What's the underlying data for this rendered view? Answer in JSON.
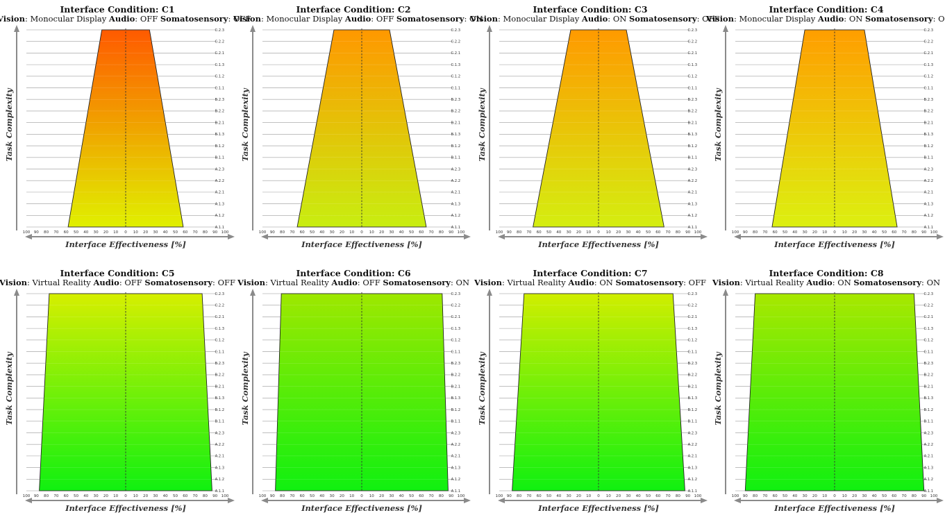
{
  "labels": {
    "title_prefix": "Interface Condition: ",
    "vision": "Vision",
    "audio": "Audio",
    "somatosensory": "Somatosensory",
    "x_axis": "Interface Effectiveness [%]",
    "y_axis": "Task Complexity"
  },
  "chart_data": [
    {
      "type": "area",
      "title": "Interface Condition: C1",
      "condition": "C1",
      "vision": "Monocular Display",
      "audio": "OFF",
      "somatosensory": "OFF",
      "xlabel": "Interface Effectiveness [%]",
      "ylabel": "Task Complexity",
      "x_ticks": [
        "100",
        "90",
        "80",
        "70",
        "60",
        "50",
        "40",
        "30",
        "20",
        "10",
        "0",
        "10",
        "20",
        "30",
        "40",
        "50",
        "60",
        "70",
        "80",
        "90",
        "100"
      ],
      "y_categories": [
        "A.1.1",
        "A.1.2",
        "A.1.3",
        "A.2.1",
        "A.2.2",
        "A.2.3",
        "B.1.1",
        "B.1.2",
        "B.1.3",
        "B.2.1",
        "B.2.2",
        "B.2.3",
        "C.1.1",
        "C.1.2",
        "C.1.3",
        "C.2.1",
        "C.2.2",
        "C.2.3"
      ],
      "effectiveness_bottom": 58,
      "effectiveness_top": 24,
      "top_color": "#ff5a00",
      "bottom_color": "#e0f000"
    },
    {
      "type": "area",
      "title": "Interface Condition: C2",
      "condition": "C2",
      "vision": "Monocular Display",
      "audio": "OFF",
      "somatosensory": "ON",
      "xlabel": "Interface Effectiveness [%]",
      "ylabel": "Task Complexity",
      "x_ticks": [
        "100",
        "90",
        "80",
        "70",
        "60",
        "50",
        "40",
        "30",
        "20",
        "10",
        "0",
        "10",
        "20",
        "30",
        "40",
        "50",
        "60",
        "70",
        "80",
        "90",
        "100"
      ],
      "y_categories": [
        "A.1.1",
        "A.1.2",
        "A.1.3",
        "A.2.1",
        "A.2.2",
        "A.2.3",
        "B.1.1",
        "B.1.2",
        "B.1.3",
        "B.2.1",
        "B.2.2",
        "B.2.3",
        "C.1.1",
        "C.1.2",
        "C.1.3",
        "C.2.1",
        "C.2.2",
        "C.2.3"
      ],
      "effectiveness_bottom": 65,
      "effectiveness_top": 28,
      "top_color": "#ff9800",
      "bottom_color": "#c8ee10"
    },
    {
      "type": "area",
      "title": "Interface Condition: C3",
      "condition": "C3",
      "vision": "Monocular Display",
      "audio": "ON",
      "somatosensory": "OFF",
      "xlabel": "Interface Effectiveness [%]",
      "ylabel": "Task Complexity",
      "x_ticks": [
        "100",
        "90",
        "80",
        "70",
        "60",
        "50",
        "40",
        "30",
        "20",
        "10",
        "0",
        "10",
        "20",
        "30",
        "40",
        "50",
        "60",
        "70",
        "80",
        "90",
        "100"
      ],
      "y_categories": [
        "A.1.1",
        "A.1.2",
        "A.1.3",
        "A.2.1",
        "A.2.2",
        "A.2.3",
        "B.1.1",
        "B.1.2",
        "B.1.3",
        "B.2.1",
        "B.2.2",
        "B.2.3",
        "C.1.1",
        "C.1.2",
        "C.1.3",
        "C.2.1",
        "C.2.2",
        "C.2.3"
      ],
      "effectiveness_bottom": 66,
      "effectiveness_top": 28,
      "top_color": "#ff9a00",
      "bottom_color": "#d4ee10"
    },
    {
      "type": "area",
      "title": "Interface Condition: C4",
      "condition": "C4",
      "vision": "Monocular Display",
      "audio": "ON",
      "somatosensory": "ON",
      "xlabel": "Interface Effectiveness [%]",
      "ylabel": "Task Complexity",
      "x_ticks": [
        "100",
        "90",
        "80",
        "70",
        "60",
        "50",
        "40",
        "30",
        "20",
        "10",
        "0",
        "10",
        "20",
        "30",
        "40",
        "50",
        "60",
        "70",
        "80",
        "90",
        "100"
      ],
      "y_categories": [
        "A.1.1",
        "A.1.2",
        "A.1.3",
        "A.2.1",
        "A.2.2",
        "A.2.3",
        "B.1.1",
        "B.1.2",
        "B.1.3",
        "B.2.1",
        "B.2.2",
        "B.2.3",
        "C.1.1",
        "C.1.2",
        "C.1.3",
        "C.2.1",
        "C.2.2",
        "C.2.3"
      ],
      "effectiveness_bottom": 63,
      "effectiveness_top": 30,
      "top_color": "#ff9e00",
      "bottom_color": "#dcf010"
    },
    {
      "type": "area",
      "title": "Interface Condition: C5",
      "condition": "C5",
      "vision": "Virtual Reality",
      "audio": "OFF",
      "somatosensory": "OFF",
      "xlabel": "Interface Effectiveness [%]",
      "ylabel": "Task Complexity",
      "x_ticks": [
        "100",
        "90",
        "80",
        "70",
        "60",
        "50",
        "40",
        "30",
        "20",
        "10",
        "0",
        "10",
        "20",
        "30",
        "40",
        "50",
        "60",
        "70",
        "80",
        "90",
        "100"
      ],
      "y_categories": [
        "A.1.1",
        "A.1.2",
        "A.1.3",
        "A.2.1",
        "A.2.2",
        "A.2.3",
        "B.1.1",
        "B.1.2",
        "B.1.3",
        "B.2.1",
        "B.2.2",
        "B.2.3",
        "C.1.1",
        "C.1.2",
        "C.1.3",
        "C.2.1",
        "C.2.2",
        "C.2.3"
      ],
      "effectiveness_bottom": 87,
      "effectiveness_top": 77,
      "top_color": "#d6ef00",
      "bottom_color": "#10f010"
    },
    {
      "type": "area",
      "title": "Interface Condition: C6",
      "condition": "C6",
      "vision": "Virtual Reality",
      "audio": "OFF",
      "somatosensory": "ON",
      "xlabel": "Interface Effectiveness [%]",
      "ylabel": "Task Complexity",
      "x_ticks": [
        "100",
        "90",
        "80",
        "70",
        "60",
        "50",
        "40",
        "30",
        "20",
        "10",
        "0",
        "10",
        "20",
        "30",
        "40",
        "50",
        "60",
        "70",
        "80",
        "90",
        "100"
      ],
      "y_categories": [
        "A.1.1",
        "A.1.2",
        "A.1.3",
        "A.2.1",
        "A.2.2",
        "A.2.3",
        "B.1.1",
        "B.1.2",
        "B.1.3",
        "B.2.1",
        "B.2.2",
        "B.2.3",
        "C.1.1",
        "C.1.2",
        "C.1.3",
        "C.2.1",
        "C.2.2",
        "C.2.3"
      ],
      "effectiveness_bottom": 87,
      "effectiveness_top": 81,
      "top_color": "#9ee800",
      "bottom_color": "#10f010"
    },
    {
      "type": "area",
      "title": "Interface Condition: C7",
      "condition": "C7",
      "vision": "Virtual Reality",
      "audio": "ON",
      "somatosensory": "OFF",
      "xlabel": "Interface Effectiveness [%]",
      "ylabel": "Task Complexity",
      "x_ticks": [
        "100",
        "90",
        "80",
        "70",
        "60",
        "50",
        "40",
        "30",
        "20",
        "10",
        "0",
        "10",
        "20",
        "30",
        "40",
        "50",
        "60",
        "70",
        "80",
        "90",
        "100"
      ],
      "y_categories": [
        "A.1.1",
        "A.1.2",
        "A.1.3",
        "A.2.1",
        "A.2.2",
        "A.2.3",
        "B.1.1",
        "B.1.2",
        "B.1.3",
        "B.2.1",
        "B.2.2",
        "B.2.3",
        "C.1.1",
        "C.1.2",
        "C.1.3",
        "C.2.1",
        "C.2.2",
        "C.2.3"
      ],
      "effectiveness_bottom": 87,
      "effectiveness_top": 75,
      "top_color": "#d0ee00",
      "bottom_color": "#10f010"
    },
    {
      "type": "area",
      "title": "Interface Condition: C8",
      "condition": "C8",
      "vision": "Virtual Reality",
      "audio": "ON",
      "somatosensory": "ON",
      "xlabel": "Interface Effectiveness [%]",
      "ylabel": "Task Complexity",
      "x_ticks": [
        "100",
        "90",
        "80",
        "70",
        "60",
        "50",
        "40",
        "30",
        "20",
        "10",
        "0",
        "10",
        "20",
        "30",
        "40",
        "50",
        "60",
        "70",
        "80",
        "90",
        "100"
      ],
      "y_categories": [
        "A.1.1",
        "A.1.2",
        "A.1.3",
        "A.2.1",
        "A.2.2",
        "A.2.3",
        "B.1.1",
        "B.1.2",
        "B.1.3",
        "B.2.1",
        "B.2.2",
        "B.2.3",
        "C.1.1",
        "C.1.2",
        "C.1.3",
        "C.2.1",
        "C.2.2",
        "C.2.3"
      ],
      "effectiveness_bottom": 90,
      "effectiveness_top": 80,
      "top_color": "#a8e800",
      "bottom_color": "#10f010"
    }
  ]
}
